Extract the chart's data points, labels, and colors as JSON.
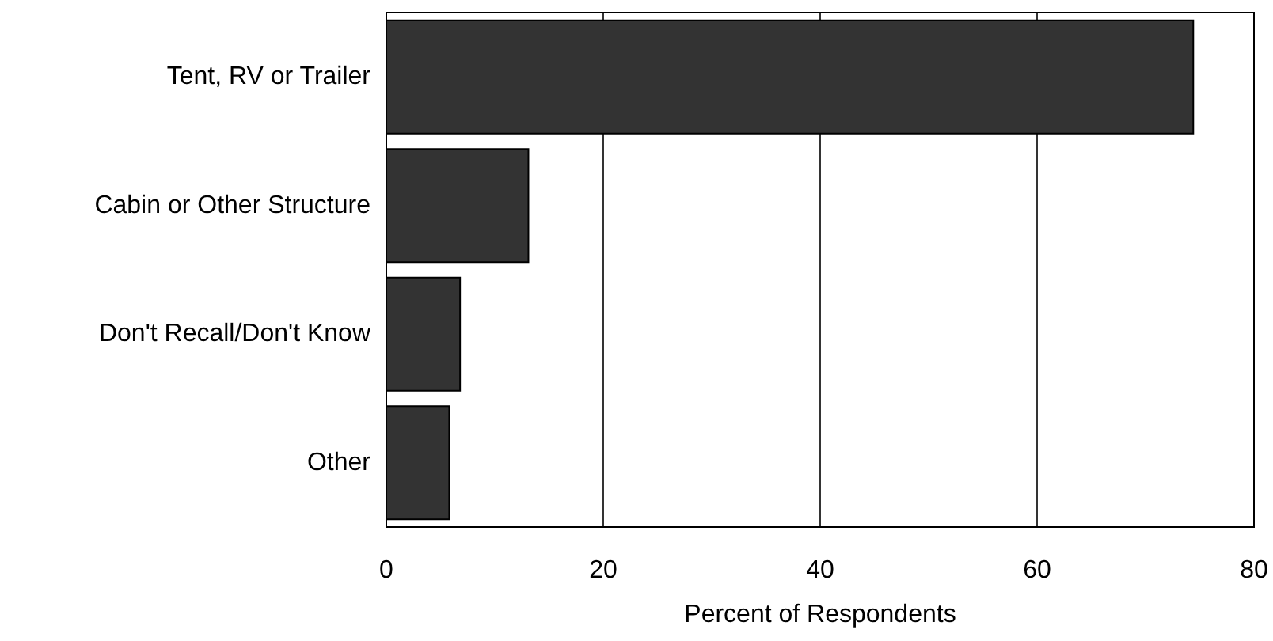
{
  "chart_data": {
    "type": "bar",
    "orientation": "horizontal",
    "xlabel": "Percent of Respondents",
    "categories": [
      "Tent, RV or Trailer",
      "Cabin or Other Structure",
      "Don't Recall/Don't Know",
      "Other"
    ],
    "values": [
      74.4,
      13.1,
      6.8,
      5.8
    ],
    "color": "#333333",
    "xlim": [
      0,
      80
    ],
    "xticks": [
      0,
      20,
      40,
      60,
      80
    ],
    "grid": "x"
  }
}
